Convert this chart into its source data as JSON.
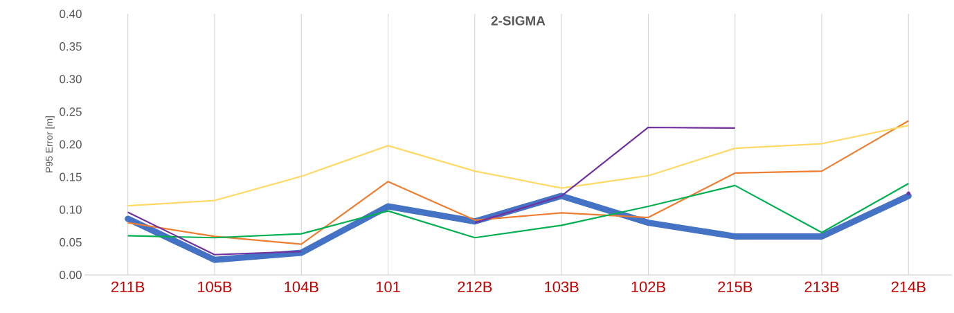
{
  "chart_data": {
    "type": "line",
    "title": "2-SIGMA",
    "ylabel": "P95 Error [m]",
    "categories": [
      "211B",
      "105B",
      "104B",
      "101",
      "212B",
      "103B",
      "102B",
      "215B",
      "213B",
      "214B"
    ],
    "series": [
      {
        "color": "#4472c4",
        "values": [
          0.086,
          0.023,
          0.034,
          0.105,
          0.082,
          0.121,
          0.08,
          0.059,
          0.059,
          0.121
        ]
      },
      {
        "color": "#ed7d31",
        "values": [
          0.08,
          0.059,
          0.047,
          0.143,
          0.084,
          0.095,
          0.088,
          0.156,
          0.159,
          0.236
        ]
      },
      {
        "color": "#ffd966",
        "values": [
          0.106,
          0.114,
          0.151,
          0.198,
          0.159,
          0.133,
          0.152,
          0.194,
          0.201,
          0.229
        ]
      },
      {
        "color": "#00b050",
        "values": [
          0.06,
          0.057,
          0.063,
          0.098,
          0.057,
          0.076,
          0.105,
          0.137,
          0.065,
          0.14
        ]
      },
      {
        "color": "#7030a0",
        "values": [
          0.096,
          0.031,
          0.036,
          null,
          0.08,
          0.121,
          0.226,
          0.225,
          null,
          0.125
        ]
      }
    ],
    "ylim": [
      0,
      0.4
    ],
    "yticks": [
      {
        "value": 0,
        "label": "0.00"
      },
      {
        "value": 0.05,
        "label": "0.05"
      },
      {
        "value": 0.1,
        "label": "0.10"
      },
      {
        "value": 0.15,
        "label": "0.15"
      },
      {
        "value": 0.2,
        "label": "0.20"
      },
      {
        "value": 0.25,
        "label": "0.25"
      },
      {
        "value": 0.3,
        "label": "0.30"
      },
      {
        "value": 0.35,
        "label": "0.35"
      },
      {
        "value": 0.4,
        "label": "0.40"
      }
    ],
    "grid": "x",
    "marker": "none",
    "line_style": "solid"
  }
}
